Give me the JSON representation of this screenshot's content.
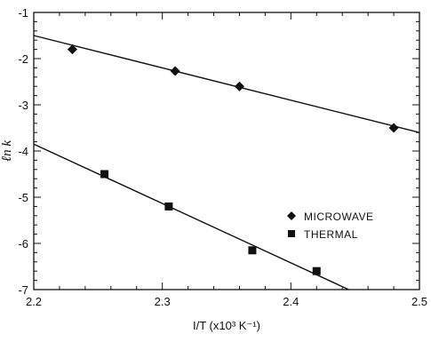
{
  "chart_data": {
    "type": "scatter",
    "title": "",
    "xlabel": "I/T (x10³ K⁻¹)",
    "ylabel": "ℓn k",
    "xlim": [
      2.2,
      2.5
    ],
    "ylim": [
      -7,
      -1
    ],
    "xticks": [
      2.2,
      2.3,
      2.4,
      2.5
    ],
    "xtick_labels": [
      "2.2",
      "2.3",
      "2.4",
      "2.5"
    ],
    "yticks": [
      -7,
      -6,
      -5,
      -4,
      -3,
      -2,
      -1
    ],
    "ytick_labels": [
      "-7",
      "-6",
      "-5",
      "-4",
      "-3",
      "-2",
      "-1"
    ],
    "grid": false,
    "legend_position": "center-right",
    "series": [
      {
        "name": "MICROWAVE",
        "marker": "diamond",
        "x": [
          2.23,
          2.31,
          2.36,
          2.48
        ],
        "y": [
          -1.8,
          -2.27,
          -2.6,
          -3.5
        ],
        "fit_line": {
          "x": [
            2.2,
            2.5
          ],
          "y": [
            -1.5,
            -3.6
          ]
        }
      },
      {
        "name": "THERMAL",
        "marker": "square",
        "x": [
          2.255,
          2.305,
          2.37,
          2.42
        ],
        "y": [
          -4.5,
          -5.2,
          -6.15,
          -6.6
        ],
        "fit_line": {
          "x": [
            2.2,
            2.445
          ],
          "y": [
            -3.85,
            -7.0
          ]
        }
      }
    ],
    "colors": {
      "ink": "#111111",
      "background": "#ffffff"
    }
  }
}
